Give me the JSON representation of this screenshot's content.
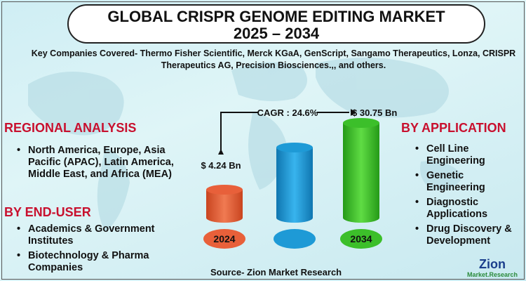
{
  "title": {
    "line1": "GLOBAL CRISPR GENOME EDITING MARKET",
    "line2": "2025 – 2034"
  },
  "companies": "Key Companies Covered- Thermo Fisher Scientific, Merck KGaA, GenScript, Sangamo Therapeutics, Lonza, CRISPR Therapeutics AG, Precision Biosciences.,, and others.",
  "regional": {
    "heading": "REGIONAL ANALYSIS",
    "items": [
      "North America, Europe, Asia Pacific (APAC), Latin America, Middle East, and Africa (MEA)"
    ]
  },
  "end_user": {
    "heading": "BY END-USER",
    "items": [
      "Academics & Government Institutes",
      "Biotechnology & Pharma Companies"
    ]
  },
  "application": {
    "heading": "BY  APPLICATION",
    "items": [
      "Cell Line Engineering",
      "Genetic Engineering",
      "Diagnostic Applications",
      "Drug Discovery & Development"
    ]
  },
  "chart_data": {
    "type": "bar",
    "categories": [
      "2024",
      "",
      "2034"
    ],
    "values": [
      4.24,
      null,
      30.75
    ],
    "data_labels": [
      "$ 4.24 Bn",
      "",
      "$ 30.75 Bn"
    ],
    "annotation": "CAGR : 24.6%",
    "colors": [
      "#e8603a",
      "#1e9ad6",
      "#3cbf2a"
    ]
  },
  "source": "Source- Zion Market Research",
  "logo": {
    "name": "Zion",
    "sub": "Market.Research"
  }
}
